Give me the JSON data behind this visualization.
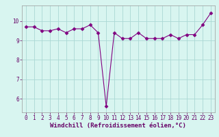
{
  "xlabel": "Windchill (Refroidissement éolien,°C)",
  "x": [
    0,
    1,
    2,
    3,
    4,
    5,
    6,
    7,
    8,
    9,
    10,
    11,
    12,
    13,
    14,
    15,
    16,
    17,
    18,
    19,
    20,
    21,
    22,
    23
  ],
  "y": [
    9.7,
    9.7,
    9.5,
    9.5,
    9.6,
    9.4,
    9.6,
    9.6,
    9.8,
    9.4,
    5.6,
    9.4,
    9.1,
    9.1,
    9.4,
    9.1,
    9.1,
    9.1,
    9.3,
    9.1,
    9.3,
    9.3,
    9.8,
    10.4
  ],
  "line_color": "#800080",
  "marker": "D",
  "marker_size": 2.5,
  "background_color": "#d8f5f0",
  "grid_color": "#aad8d4",
  "ylim": [
    5.3,
    10.8
  ],
  "xlim": [
    -0.5,
    23.5
  ],
  "yticks": [
    6,
    7,
    8,
    9,
    10
  ],
  "xticks": [
    0,
    1,
    2,
    3,
    4,
    5,
    6,
    7,
    8,
    9,
    10,
    11,
    12,
    13,
    14,
    15,
    16,
    17,
    18,
    19,
    20,
    21,
    22,
    23
  ],
  "tick_fontsize": 5.5,
  "xlabel_fontsize": 6.5,
  "line_width": 0.8
}
